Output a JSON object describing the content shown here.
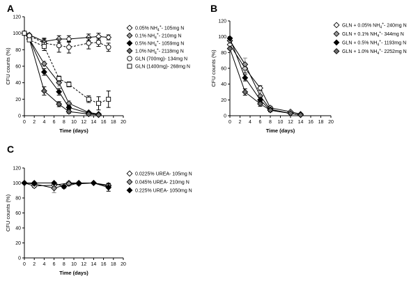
{
  "chart_data": [
    {
      "type": "line",
      "panel_label": "A",
      "xlabel": "Time (days)",
      "ylabel": "CFU counts (%)",
      "xlim": [
        0,
        20
      ],
      "ylim": [
        0,
        120
      ],
      "xticks": [
        "0",
        "2",
        "4",
        "6",
        "8",
        "10",
        "12",
        "14",
        "16",
        "18",
        "20"
      ],
      "yticks": [
        "0",
        "20",
        "40",
        "60",
        "80",
        "100",
        "120"
      ],
      "series": [
        {
          "name": "0.05% NH4+- 105mg N",
          "legend_parts": [
            "0.05% NH",
            "4",
            "+",
            "- 105mg N"
          ],
          "marker": "diamond",
          "fill": "#ffffff",
          "dashed": false,
          "points": [
            [
              0,
              100
            ],
            [
              1,
              98
            ],
            [
              4,
              90
            ],
            [
              7,
              93
            ],
            [
              9,
              93
            ],
            [
              13,
              95
            ],
            [
              15,
              96
            ],
            [
              17,
              95
            ]
          ],
          "err": [
            0,
            0,
            4,
            4,
            4,
            4,
            4,
            3
          ]
        },
        {
          "name": "0.1% NH4+- 210mg N",
          "legend_parts": [
            "0.1% NH",
            "4",
            "+",
            "- 210mg N"
          ],
          "marker": "diamond",
          "fill": "#9a9a9a",
          "dashed": false,
          "points": [
            [
              0,
              100
            ],
            [
              1,
              93
            ],
            [
              4,
              63
            ],
            [
              7,
              40
            ],
            [
              9,
              15
            ],
            [
              13,
              4
            ],
            [
              15,
              2
            ]
          ],
          "err": [
            0,
            0,
            3,
            4,
            3,
            1,
            0
          ]
        },
        {
          "name": "0.5% NH4+- 1059mg N",
          "legend_parts": [
            "0.5% NH",
            "4",
            "+",
            "- 1059mg N"
          ],
          "marker": "diamond",
          "fill": "#000000",
          "dashed": false,
          "points": [
            [
              0,
              100
            ],
            [
              1,
              93
            ],
            [
              4,
              53
            ],
            [
              7,
              29
            ],
            [
              9,
              10
            ],
            [
              13,
              3
            ],
            [
              15,
              1
            ]
          ],
          "err": [
            0,
            0,
            4,
            4,
            2,
            1,
            0
          ]
        },
        {
          "name": "1.0% NH4+- 2118mg N",
          "legend_parts": [
            "1.0% NH",
            "4",
            "+",
            "- 2118mg N"
          ],
          "marker": "diamond",
          "fill": "#6e6e6e",
          "dashed": false,
          "points": [
            [
              0,
              100
            ],
            [
              1,
              93
            ],
            [
              4,
              30
            ],
            [
              7,
              14
            ],
            [
              9,
              5
            ],
            [
              13,
              2
            ],
            [
              15,
              1
            ]
          ],
          "err": [
            0,
            0,
            5,
            3,
            2,
            1,
            0
          ]
        },
        {
          "name": "GLN (700mg)- 134mg N",
          "legend_parts": [
            "GLN (700mg)- 134mg N"
          ],
          "marker": "circle",
          "fill": "#ffffff",
          "dashed": true,
          "points": [
            [
              0,
              100
            ],
            [
              1,
              97
            ],
            [
              4,
              88
            ],
            [
              7,
              85
            ],
            [
              9,
              83
            ],
            [
              13,
              88
            ],
            [
              15,
              89
            ],
            [
              17,
              83
            ]
          ],
          "err": [
            0,
            0,
            5,
            8,
            7,
            7,
            5,
            5
          ]
        },
        {
          "name": "GLN (1400mg)- 268mg N",
          "legend_parts": [
            "GLN (1400mg)- 268mg N"
          ],
          "marker": "square",
          "fill": "#ffffff",
          "dashed": true,
          "points": [
            [
              0,
              100
            ],
            [
              1,
              92
            ],
            [
              4,
              84
            ],
            [
              7,
              45
            ],
            [
              9,
              38
            ],
            [
              13,
              20
            ],
            [
              15,
              15
            ],
            [
              17,
              20
            ]
          ],
          "err": [
            0,
            0,
            5,
            3,
            3,
            4,
            8,
            10
          ]
        }
      ]
    },
    {
      "type": "line",
      "panel_label": "B",
      "xlabel": "Time (days)",
      "ylabel": "CFU counts (%)",
      "xlim": [
        0,
        20
      ],
      "ylim": [
        0,
        120
      ],
      "xticks": [
        "0",
        "2",
        "4",
        "6",
        "8",
        "10",
        "12",
        "14",
        "16",
        "18",
        "20"
      ],
      "yticks": [
        "0",
        "20",
        "40",
        "60",
        "80",
        "100",
        "120"
      ],
      "series": [
        {
          "name": "GLN + 0.05% NH4+- 240mg N",
          "legend_parts": [
            "GLN + 0.05% NH",
            "4",
            "+",
            "- 240mg N"
          ],
          "marker": "diamond",
          "fill": "#ffffff",
          "dashed": false,
          "points": [
            [
              0,
              90
            ],
            [
              3,
              60
            ],
            [
              6,
              35
            ],
            [
              8,
              10
            ],
            [
              12,
              5
            ],
            [
              14,
              2
            ]
          ],
          "err": [
            0,
            6,
            3,
            2,
            1,
            0
          ]
        },
        {
          "name": "GLN + 0.1% NH4+- 344mg N",
          "legend_parts": [
            "GLN + 0.1% NH",
            "4",
            "+",
            "- 344mg N"
          ],
          "marker": "diamond",
          "fill": "#9a9a9a",
          "dashed": false,
          "points": [
            [
              0,
              95
            ],
            [
              3,
              65
            ],
            [
              6,
              25
            ],
            [
              8,
              8
            ],
            [
              12,
              3
            ],
            [
              14,
              1
            ]
          ],
          "err": [
            0,
            8,
            5,
            2,
            1,
            0
          ]
        },
        {
          "name": "GLN + 0.5% NH4+- 1193mg N",
          "legend_parts": [
            "GLN + 0.5% NH",
            "4",
            "+",
            "- 1193mg N"
          ],
          "marker": "diamond",
          "fill": "#000000",
          "dashed": false,
          "points": [
            [
              0,
              98
            ],
            [
              3,
              48
            ],
            [
              6,
              20
            ],
            [
              8,
              7
            ],
            [
              12,
              3
            ],
            [
              14,
              1
            ]
          ],
          "err": [
            0,
            4,
            3,
            2,
            1,
            0
          ]
        },
        {
          "name": "GLN + 1.0% NH4+- 2252mg N",
          "legend_parts": [
            "GLN + 1.0% NH",
            "4",
            "+",
            "- 2252mg N"
          ],
          "marker": "diamond",
          "fill": "#6e6e6e",
          "dashed": false,
          "points": [
            [
              0,
              85
            ],
            [
              3,
              30
            ],
            [
              6,
              15
            ],
            [
              8,
              7
            ],
            [
              12,
              3
            ],
            [
              14,
              1
            ]
          ],
          "err": [
            0,
            4,
            3,
            2,
            1,
            0
          ]
        }
      ]
    },
    {
      "type": "line",
      "panel_label": "C",
      "xlabel": "Time (days)",
      "ylabel": "CFU counts (%)",
      "xlim": [
        0,
        20
      ],
      "ylim": [
        0,
        120
      ],
      "xticks": [
        "0",
        "2",
        "4",
        "6",
        "8",
        "10",
        "12",
        "14",
        "16",
        "18",
        "20"
      ],
      "yticks": [
        "0",
        "20",
        "40",
        "60",
        "80",
        "100",
        "120"
      ],
      "series": [
        {
          "name": "0.0225% UREA- 105mg N",
          "legend_parts": [
            "0.0225% UREA- 105mg N"
          ],
          "marker": "diamond",
          "fill": "#ffffff",
          "dashed": false,
          "points": [
            [
              0,
              100
            ],
            [
              2,
              96
            ],
            [
              6,
              97
            ],
            [
              9,
              100
            ],
            [
              11,
              100
            ],
            [
              14,
              100
            ],
            [
              17,
              96
            ]
          ],
          "err": [
            0,
            2,
            3,
            2,
            1,
            1,
            3
          ]
        },
        {
          "name": "0.045% UREA- 210mg N",
          "legend_parts": [
            "0.045% UREA- 210mg N"
          ],
          "marker": "diamond",
          "fill": "#9a9a9a",
          "dashed": false,
          "points": [
            [
              0,
              100
            ],
            [
              2,
              99
            ],
            [
              6,
              93
            ],
            [
              9,
              99
            ],
            [
              11,
              99
            ],
            [
              14,
              100
            ],
            [
              17,
              97
            ]
          ],
          "err": [
            0,
            2,
            6,
            3,
            2,
            1,
            3
          ]
        },
        {
          "name": "0.225% UREA- 1050mg N",
          "legend_parts": [
            "0.225% UREA- 1050mg N"
          ],
          "marker": "diamond",
          "fill": "#000000",
          "dashed": false,
          "points": [
            [
              0,
              100
            ],
            [
              2,
              100
            ],
            [
              6,
              100
            ],
            [
              8,
              95
            ],
            [
              11,
              100
            ],
            [
              14,
              100
            ],
            [
              17,
              94
            ]
          ],
          "err": [
            0,
            1,
            1,
            2,
            1,
            1,
            5
          ]
        }
      ]
    }
  ]
}
